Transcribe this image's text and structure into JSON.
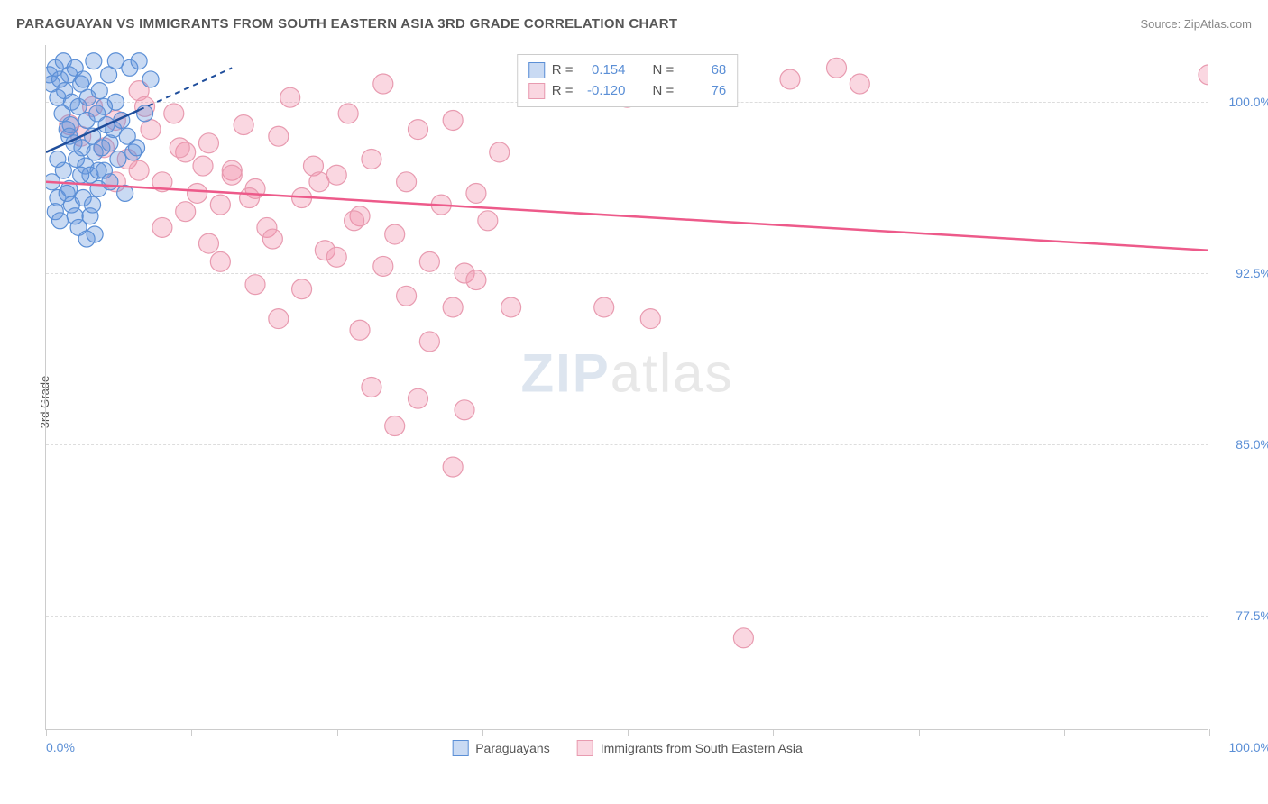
{
  "header": {
    "title": "PARAGUAYAN VS IMMIGRANTS FROM SOUTH EASTERN ASIA 3RD GRADE CORRELATION CHART",
    "source": "Source: ZipAtlas.com"
  },
  "chart": {
    "type": "scatter",
    "y_axis_label": "3rd Grade",
    "xlim": [
      0,
      100
    ],
    "ylim": [
      72.5,
      102.5
    ],
    "x_ticks": [
      0,
      12.5,
      25,
      37.5,
      50,
      62.5,
      75,
      87.5,
      100
    ],
    "x_tick_labels": {
      "0": "0.0%",
      "100": "100.0%"
    },
    "y_grid": [
      77.5,
      85.0,
      92.5,
      100.0
    ],
    "y_tick_labels": {
      "77.5": "77.5%",
      "85.0": "85.0%",
      "92.5": "92.5%",
      "100.0": "100.0%"
    },
    "background_color": "#ffffff",
    "grid_color": "#dddddd",
    "axis_color": "#cccccc",
    "tick_label_color": "#5b8fd6",
    "watermark": {
      "zip": "ZIP",
      "atlas": "atlas"
    },
    "series": {
      "paraguayans": {
        "label": "Paraguayans",
        "color_fill": "rgba(100,150,220,0.35)",
        "color_stroke": "#5b8fd6",
        "marker_radius": 9,
        "r_value": "0.154",
        "n_value": "68",
        "trend": {
          "x1": 0,
          "y1": 97.8,
          "x2": 16,
          "y2": 101.5,
          "dash_from_x": 8
        },
        "points": [
          [
            0.3,
            101.2
          ],
          [
            0.5,
            100.8
          ],
          [
            0.8,
            101.5
          ],
          [
            1.0,
            100.2
          ],
          [
            1.2,
            101.0
          ],
          [
            1.4,
            99.5
          ],
          [
            1.5,
            101.8
          ],
          [
            1.6,
            100.5
          ],
          [
            1.8,
            98.8
          ],
          [
            2.0,
            101.2
          ],
          [
            2.1,
            99.0
          ],
          [
            2.2,
            100.0
          ],
          [
            2.4,
            98.2
          ],
          [
            2.5,
            101.5
          ],
          [
            2.6,
            97.5
          ],
          [
            2.8,
            99.8
          ],
          [
            3.0,
            100.8
          ],
          [
            3.1,
            98.0
          ],
          [
            3.2,
            101.0
          ],
          [
            3.4,
            97.2
          ],
          [
            3.5,
            99.2
          ],
          [
            3.6,
            100.2
          ],
          [
            3.8,
            96.8
          ],
          [
            4.0,
            98.5
          ],
          [
            4.1,
            101.8
          ],
          [
            4.2,
            97.8
          ],
          [
            4.4,
            99.5
          ],
          [
            4.5,
            96.2
          ],
          [
            4.6,
            100.5
          ],
          [
            4.8,
            98.0
          ],
          [
            5.0,
            97.0
          ],
          [
            5.2,
            99.0
          ],
          [
            5.4,
            101.2
          ],
          [
            5.5,
            96.5
          ],
          [
            5.8,
            98.8
          ],
          [
            6.0,
            100.0
          ],
          [
            6.2,
            97.5
          ],
          [
            6.5,
            99.2
          ],
          [
            6.8,
            96.0
          ],
          [
            7.0,
            98.5
          ],
          [
            7.2,
            101.5
          ],
          [
            7.5,
            97.8
          ],
          [
            0.5,
            96.5
          ],
          [
            1.0,
            95.8
          ],
          [
            1.5,
            97.0
          ],
          [
            2.0,
            96.2
          ],
          [
            2.5,
            95.0
          ],
          [
            3.0,
            96.8
          ],
          [
            0.8,
            95.2
          ],
          [
            1.2,
            94.8
          ],
          [
            1.8,
            96.0
          ],
          [
            2.2,
            95.5
          ],
          [
            2.8,
            94.5
          ],
          [
            3.2,
            95.8
          ],
          [
            3.8,
            95.0
          ],
          [
            4.2,
            94.2
          ],
          [
            8.0,
            101.8
          ],
          [
            8.5,
            99.5
          ],
          [
            9.0,
            101.0
          ],
          [
            6.0,
            101.8
          ],
          [
            4.0,
            95.5
          ],
          [
            5.0,
            99.8
          ],
          [
            5.5,
            98.2
          ],
          [
            7.8,
            98.0
          ],
          [
            3.5,
            94.0
          ],
          [
            1.0,
            97.5
          ],
          [
            2.0,
            98.5
          ],
          [
            4.5,
            97.0
          ]
        ]
      },
      "immigrants": {
        "label": "Immigrants from South Eastern Asia",
        "color_fill": "rgba(240,140,170,0.35)",
        "color_stroke": "#e89bb0",
        "marker_radius": 11,
        "r_value": "-0.120",
        "n_value": "76",
        "trend": {
          "x1": 0,
          "y1": 96.5,
          "x2": 100,
          "y2": 93.5
        },
        "trend_color": "#ed5a8a",
        "points": [
          [
            2.0,
            99.0
          ],
          [
            3.0,
            98.5
          ],
          [
            4.0,
            99.8
          ],
          [
            5.0,
            98.0
          ],
          [
            6.0,
            99.2
          ],
          [
            7.0,
            97.5
          ],
          [
            8.0,
            100.5
          ],
          [
            9.0,
            98.8
          ],
          [
            10.0,
            96.5
          ],
          [
            11.0,
            99.5
          ],
          [
            12.0,
            97.8
          ],
          [
            13.0,
            96.0
          ],
          [
            14.0,
            98.2
          ],
          [
            15.0,
            95.5
          ],
          [
            16.0,
            97.0
          ],
          [
            17.0,
            99.0
          ],
          [
            18.0,
            96.2
          ],
          [
            19.0,
            94.5
          ],
          [
            20.0,
            98.5
          ],
          [
            21.0,
            100.2
          ],
          [
            22.0,
            95.8
          ],
          [
            23.0,
            97.2
          ],
          [
            24.0,
            93.5
          ],
          [
            25.0,
            96.8
          ],
          [
            26.0,
            99.5
          ],
          [
            27.0,
            95.0
          ],
          [
            28.0,
            97.5
          ],
          [
            29.0,
            100.8
          ],
          [
            30.0,
            94.2
          ],
          [
            31.0,
            96.5
          ],
          [
            32.0,
            98.8
          ],
          [
            33.0,
            93.0
          ],
          [
            34.0,
            95.5
          ],
          [
            35.0,
            99.2
          ],
          [
            36.0,
            92.5
          ],
          [
            37.0,
            96.0
          ],
          [
            38.0,
            94.8
          ],
          [
            39.0,
            97.8
          ],
          [
            40.0,
            91.0
          ],
          [
            15.0,
            93.0
          ],
          [
            18.0,
            92.0
          ],
          [
            20.0,
            90.5
          ],
          [
            22.0,
            91.8
          ],
          [
            25.0,
            93.2
          ],
          [
            27.0,
            90.0
          ],
          [
            29.0,
            92.8
          ],
          [
            31.0,
            91.5
          ],
          [
            33.0,
            89.5
          ],
          [
            35.0,
            91.0
          ],
          [
            37.0,
            92.2
          ],
          [
            28.0,
            87.5
          ],
          [
            32.0,
            87.0
          ],
          [
            36.0,
            86.5
          ],
          [
            30.0,
            85.8
          ],
          [
            35.0,
            84.0
          ],
          [
            10.0,
            94.5
          ],
          [
            12.0,
            95.2
          ],
          [
            14.0,
            93.8
          ],
          [
            16.0,
            96.8
          ],
          [
            8.0,
            97.0
          ],
          [
            6.0,
            96.5
          ],
          [
            48.0,
            91.0
          ],
          [
            50.0,
            100.2
          ],
          [
            52.0,
            90.5
          ],
          [
            60.0,
            76.5
          ],
          [
            64.0,
            101.0
          ],
          [
            68.0,
            101.5
          ],
          [
            70.0,
            100.8
          ],
          [
            100.0,
            101.2
          ],
          [
            8.5,
            99.8
          ],
          [
            11.5,
            98.0
          ],
          [
            13.5,
            97.2
          ],
          [
            17.5,
            95.8
          ],
          [
            19.5,
            94.0
          ],
          [
            23.5,
            96.5
          ],
          [
            26.5,
            94.8
          ]
        ]
      }
    },
    "legend_top": {
      "r_label": "R =",
      "n_label": "N ="
    },
    "legend_bottom": [
      {
        "key": "paraguayans"
      },
      {
        "key": "immigrants"
      }
    ]
  }
}
